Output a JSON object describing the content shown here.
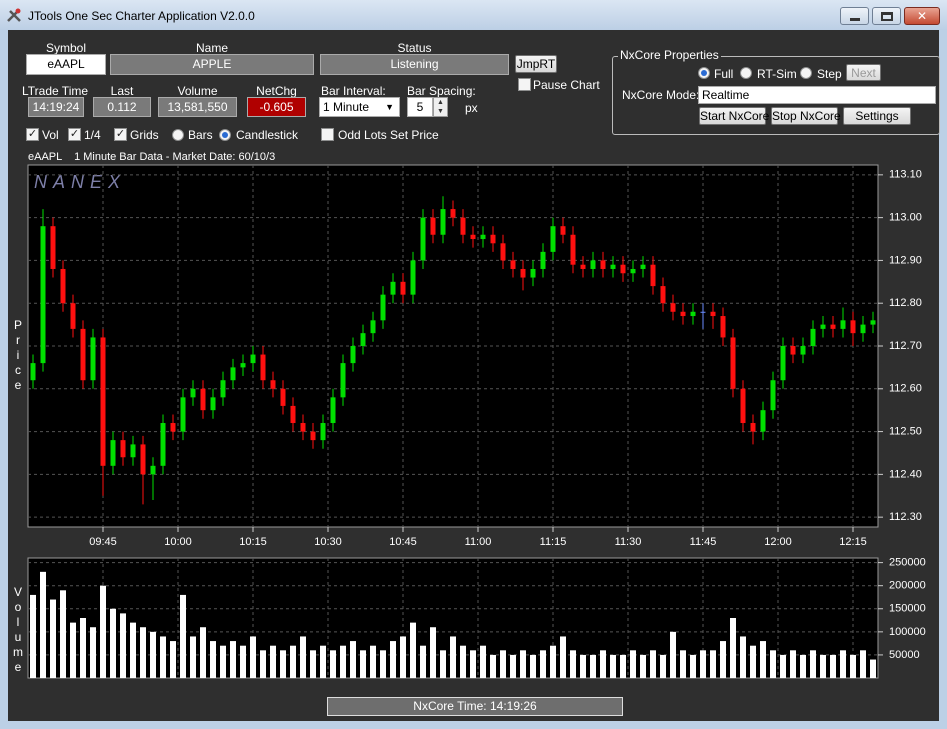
{
  "window": {
    "title": "JTools One Sec Charter Application V2.0.0"
  },
  "fields": {
    "symbol_label": "Symbol",
    "symbol": "eAAPL",
    "name_label": "Name",
    "name": "APPLE",
    "status_label": "Status",
    "status": "Listening",
    "jmprt": "JmpRT",
    "pause": "Pause Chart",
    "ltrade_label": "LTrade Time",
    "ltrade": "14:19:24",
    "last_label": "Last",
    "last": "0.112",
    "volume_label": "Volume",
    "volume": "13,581,550",
    "netchg_label": "NetChg",
    "netchg": "-0.605",
    "bar_interval_label": "Bar Interval:",
    "bar_interval": "1 Minute",
    "bar_spacing_label": "Bar Spacing:",
    "bar_spacing": "5",
    "px": "px"
  },
  "options": {
    "vol": "Vol",
    "quarter": "1/4",
    "grids": "Grids",
    "bars": "Bars",
    "candlestick": "Candlestick",
    "odd_lots": "Odd Lots Set Price"
  },
  "nxcore": {
    "title": "NxCore Properties",
    "full": "Full",
    "rt_sim": "RT-Sim",
    "step": "Step",
    "next": "Next",
    "mode_label": "NxCore Mode:",
    "mode": "Realtime",
    "start": "Start NxCore",
    "stop": "Stop NxCore",
    "settings": "Settings"
  },
  "status_bar": "NxCore Time: 14:19:26",
  "chart_data": [
    {
      "type": "candlestick",
      "title": "eAAPL    1 Minute Bar Data - Market Date: 60/10/3",
      "watermark": "NANEX",
      "y_label": "Price",
      "x": [
        "09:31",
        "09:33",
        "09:35",
        "09:37",
        "09:39",
        "09:41",
        "09:43",
        "09:45",
        "09:47",
        "09:49",
        "09:51",
        "09:53",
        "09:55",
        "09:57",
        "09:59",
        "10:01",
        "10:03",
        "10:05",
        "10:07",
        "10:09",
        "10:11",
        "10:13",
        "10:15",
        "10:17",
        "10:19",
        "10:21",
        "10:23",
        "10:25",
        "10:27",
        "10:29",
        "10:31",
        "10:33",
        "10:35",
        "10:37",
        "10:39",
        "10:41",
        "10:43",
        "10:45",
        "10:47",
        "10:49",
        "10:51",
        "10:53",
        "10:55",
        "10:57",
        "10:59",
        "11:01",
        "11:03",
        "11:05",
        "11:07",
        "11:09",
        "11:11",
        "11:13",
        "11:15",
        "11:17",
        "11:19",
        "11:21",
        "11:23",
        "11:25",
        "11:27",
        "11:29",
        "11:31",
        "11:33",
        "11:35",
        "11:37",
        "11:39",
        "11:41",
        "11:43",
        "11:45",
        "11:47",
        "11:49",
        "11:51",
        "11:53",
        "11:55",
        "11:57",
        "11:59",
        "12:01",
        "12:03",
        "12:05",
        "12:07",
        "12:09",
        "12:11",
        "12:13",
        "12:15",
        "12:17",
        "12:19"
      ],
      "open": [
        112.62,
        112.66,
        112.98,
        112.88,
        112.8,
        112.74,
        112.62,
        112.72,
        112.42,
        112.48,
        112.44,
        112.47,
        112.4,
        112.42,
        112.52,
        112.5,
        112.58,
        112.6,
        112.55,
        112.58,
        112.62,
        112.65,
        112.66,
        112.68,
        112.62,
        112.6,
        112.56,
        112.52,
        112.5,
        112.48,
        112.52,
        112.58,
        112.66,
        112.7,
        112.73,
        112.76,
        112.82,
        112.85,
        112.82,
        112.9,
        113.0,
        112.96,
        113.02,
        113.0,
        112.96,
        112.95,
        112.96,
        112.94,
        112.9,
        112.88,
        112.86,
        112.88,
        112.92,
        112.98,
        112.96,
        112.89,
        112.88,
        112.9,
        112.88,
        112.89,
        112.87,
        112.88,
        112.89,
        112.84,
        112.8,
        112.78,
        112.77,
        112.78,
        112.78,
        112.77,
        112.72,
        112.6,
        112.52,
        112.5,
        112.55,
        112.62,
        112.7,
        112.68,
        112.7,
        112.74,
        112.75,
        112.74,
        112.76,
        112.73,
        112.75
      ],
      "high": [
        112.68,
        113.02,
        113.0,
        112.9,
        112.82,
        112.76,
        112.74,
        112.74,
        112.5,
        112.5,
        112.49,
        112.49,
        112.44,
        112.54,
        112.54,
        112.6,
        112.62,
        112.62,
        112.6,
        112.64,
        112.67,
        112.68,
        112.7,
        112.7,
        112.64,
        112.62,
        112.58,
        112.54,
        112.52,
        112.54,
        112.6,
        112.68,
        112.72,
        112.75,
        112.78,
        112.84,
        112.87,
        112.87,
        112.92,
        113.02,
        113.02,
        113.05,
        113.04,
        113.02,
        112.98,
        112.98,
        112.98,
        112.96,
        112.92,
        112.9,
        112.9,
        112.94,
        113.0,
        113.0,
        112.98,
        112.91,
        112.92,
        112.92,
        112.91,
        112.91,
        112.9,
        112.91,
        112.91,
        112.86,
        112.82,
        112.8,
        112.8,
        112.8,
        112.8,
        112.79,
        112.74,
        112.62,
        112.54,
        112.57,
        112.64,
        112.72,
        112.72,
        112.72,
        112.76,
        112.77,
        112.77,
        112.79,
        112.78,
        112.77,
        112.78
      ],
      "low": [
        112.6,
        112.64,
        112.86,
        112.78,
        112.72,
        112.6,
        112.6,
        112.35,
        112.4,
        112.42,
        112.42,
        112.33,
        112.34,
        112.4,
        112.48,
        112.48,
        112.56,
        112.53,
        112.53,
        112.56,
        112.6,
        112.63,
        112.64,
        112.6,
        112.58,
        112.54,
        112.5,
        112.48,
        112.46,
        112.46,
        112.5,
        112.56,
        112.64,
        112.68,
        112.71,
        112.74,
        112.8,
        112.8,
        112.8,
        112.88,
        112.94,
        112.94,
        112.98,
        112.94,
        112.93,
        112.93,
        112.92,
        112.88,
        112.86,
        112.83,
        112.84,
        112.86,
        112.9,
        112.94,
        112.87,
        112.86,
        112.86,
        112.86,
        112.86,
        112.85,
        112.85,
        112.86,
        112.82,
        112.78,
        112.76,
        112.75,
        112.75,
        112.74,
        112.74,
        112.7,
        112.58,
        112.5,
        112.47,
        112.48,
        112.53,
        112.6,
        112.66,
        112.66,
        112.68,
        112.72,
        112.72,
        112.72,
        112.7,
        112.71,
        112.73
      ],
      "close": [
        112.66,
        112.98,
        112.88,
        112.8,
        112.74,
        112.62,
        112.72,
        112.42,
        112.48,
        112.44,
        112.47,
        112.4,
        112.42,
        112.52,
        112.5,
        112.58,
        112.6,
        112.55,
        112.58,
        112.62,
        112.65,
        112.66,
        112.68,
        112.62,
        112.6,
        112.56,
        112.52,
        112.5,
        112.48,
        112.52,
        112.58,
        112.66,
        112.7,
        112.73,
        112.76,
        112.82,
        112.85,
        112.82,
        112.9,
        113.0,
        112.96,
        113.02,
        113.0,
        112.96,
        112.95,
        112.96,
        112.94,
        112.9,
        112.88,
        112.86,
        112.88,
        112.92,
        112.98,
        112.96,
        112.89,
        112.88,
        112.9,
        112.88,
        112.89,
        112.87,
        112.88,
        112.89,
        112.84,
        112.8,
        112.78,
        112.77,
        112.78,
        112.78,
        112.77,
        112.72,
        112.6,
        112.52,
        112.5,
        112.55,
        112.62,
        112.7,
        112.68,
        112.7,
        112.74,
        112.75,
        112.74,
        112.76,
        112.73,
        112.75,
        112.76
      ],
      "colors": {
        "up": "#00e000",
        "down": "#ff1010",
        "flat": "#6b8cff"
      },
      "xlim": [
        "09:30",
        "12:20"
      ],
      "ylim": [
        112.277,
        113.123
      ],
      "xticks": [
        "09:45",
        "10:00",
        "10:15",
        "10:30",
        "10:45",
        "11:00",
        "11:15",
        "11:30",
        "11:45",
        "12:00",
        "12:15"
      ],
      "yticks": [
        {
          "value": 112.3,
          "label": "112.30"
        },
        {
          "value": 112.4,
          "label": "112.40"
        },
        {
          "value": 112.5,
          "label": "112.50"
        },
        {
          "value": 112.6,
          "label": "112.60"
        },
        {
          "value": 112.7,
          "label": "112.70"
        },
        {
          "value": 112.8,
          "label": "112.80"
        },
        {
          "value": 112.9,
          "label": "112.90"
        },
        {
          "value": 113.0,
          "label": "113.00"
        },
        {
          "value": 113.1,
          "label": "113.10"
        }
      ],
      "grid": true
    },
    {
      "type": "bar",
      "y_label": "Volume",
      "x": [
        "09:31",
        "09:33",
        "09:35",
        "09:37",
        "09:39",
        "09:41",
        "09:43",
        "09:45",
        "09:47",
        "09:49",
        "09:51",
        "09:53",
        "09:55",
        "09:57",
        "09:59",
        "10:01",
        "10:03",
        "10:05",
        "10:07",
        "10:09",
        "10:11",
        "10:13",
        "10:15",
        "10:17",
        "10:19",
        "10:21",
        "10:23",
        "10:25",
        "10:27",
        "10:29",
        "10:31",
        "10:33",
        "10:35",
        "10:37",
        "10:39",
        "10:41",
        "10:43",
        "10:45",
        "10:47",
        "10:49",
        "10:51",
        "10:53",
        "10:55",
        "10:57",
        "10:59",
        "11:01",
        "11:03",
        "11:05",
        "11:07",
        "11:09",
        "11:11",
        "11:13",
        "11:15",
        "11:17",
        "11:19",
        "11:21",
        "11:23",
        "11:25",
        "11:27",
        "11:29",
        "11:31",
        "11:33",
        "11:35",
        "11:37",
        "11:39",
        "11:41",
        "11:43",
        "11:45",
        "11:47",
        "11:49",
        "11:51",
        "11:53",
        "11:55",
        "11:57",
        "11:59",
        "12:01",
        "12:03",
        "12:05",
        "12:07",
        "12:09",
        "12:11",
        "12:13",
        "12:15",
        "12:17",
        "12:19"
      ],
      "values": [
        180000,
        230000,
        170000,
        190000,
        120000,
        130000,
        110000,
        200000,
        150000,
        140000,
        120000,
        110000,
        100000,
        90000,
        80000,
        180000,
        90000,
        110000,
        80000,
        70000,
        80000,
        70000,
        90000,
        60000,
        70000,
        60000,
        70000,
        90000,
        60000,
        70000,
        60000,
        70000,
        80000,
        60000,
        70000,
        60000,
        80000,
        90000,
        120000,
        70000,
        110000,
        60000,
        90000,
        70000,
        60000,
        70000,
        50000,
        60000,
        50000,
        60000,
        50000,
        60000,
        70000,
        90000,
        60000,
        50000,
        50000,
        60000,
        50000,
        50000,
        60000,
        50000,
        60000,
        50000,
        100000,
        60000,
        50000,
        60000,
        60000,
        80000,
        130000,
        90000,
        70000,
        80000,
        60000,
        50000,
        60000,
        50000,
        60000,
        50000,
        50000,
        60000,
        50000,
        60000,
        40000
      ],
      "color": "#ffffff",
      "xlim": [
        "09:30",
        "12:20"
      ],
      "ylim": [
        0,
        260000
      ],
      "yticks": [
        50000,
        100000,
        150000,
        200000,
        250000
      ],
      "grid": true
    }
  ]
}
